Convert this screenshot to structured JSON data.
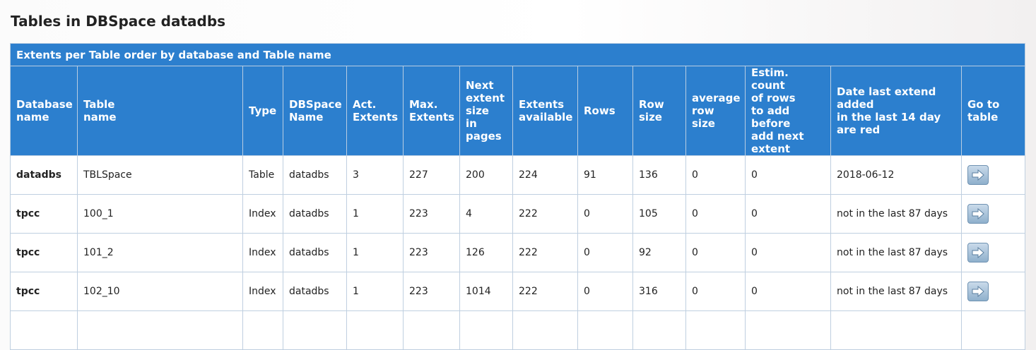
{
  "page": {
    "title": "Tables in DBSpace datadbs"
  },
  "table": {
    "caption": "Extents per Table order by database and Table name",
    "columns": [
      "Database\nname",
      "Table\nname",
      "Type",
      "DBSpace\nName",
      "Act.\nExtents",
      "Max.\nExtents",
      "Next\nextent\nsize\nin\npages",
      "Extents\navailable",
      "Rows",
      "Row\nsize",
      "average\nrow\nsize",
      "Estim. count\nof rows\nto add\nbefore\nadd next\nextent",
      "Date last extend\nadded\nin the last 14 day\nare red",
      "Go to\ntable"
    ],
    "rows": [
      {
        "database": "datadbs",
        "table": "TBLSpace",
        "type": "Table",
        "dbspace": "datadbs",
        "act_extents": "3",
        "max_extents": "227",
        "next_extent_size": "200",
        "extents_available": "224",
        "rows": "91",
        "row_size": "136",
        "avg_row_size": "0",
        "estim_rows": "0",
        "date_last_extend": "2018-06-12"
      },
      {
        "database": "tpcc",
        "table": "100_1",
        "type": "Index",
        "dbspace": "datadbs",
        "act_extents": "1",
        "max_extents": "223",
        "next_extent_size": "4",
        "extents_available": "222",
        "rows": "0",
        "row_size": "105",
        "avg_row_size": "0",
        "estim_rows": "0",
        "date_last_extend": "not in the last 87 days"
      },
      {
        "database": "tpcc",
        "table": "101_2",
        "type": "Index",
        "dbspace": "datadbs",
        "act_extents": "1",
        "max_extents": "223",
        "next_extent_size": "126",
        "extents_available": "222",
        "rows": "0",
        "row_size": "92",
        "avg_row_size": "0",
        "estim_rows": "0",
        "date_last_extend": "not in the last 87 days"
      },
      {
        "database": "tpcc",
        "table": "102_10",
        "type": "Index",
        "dbspace": "datadbs",
        "act_extents": "1",
        "max_extents": "223",
        "next_extent_size": "1014",
        "extents_available": "222",
        "rows": "0",
        "row_size": "316",
        "avg_row_size": "0",
        "estim_rows": "0",
        "date_last_extend": "not in the last 87 days"
      },
      {
        "database": "",
        "table": "",
        "type": "",
        "dbspace": "",
        "act_extents": "",
        "max_extents": "",
        "next_extent_size": "",
        "extents_available": "",
        "rows": "",
        "row_size": "",
        "avg_row_size": "",
        "estim_rows": "",
        "date_last_extend": ""
      }
    ],
    "go_button_icon": "arrow-right-icon"
  },
  "colors": {
    "header_bg": "#2c7fce",
    "header_text": "#ffffff",
    "border": "#bfcfe0",
    "button_bg": "#a9c4dc"
  }
}
